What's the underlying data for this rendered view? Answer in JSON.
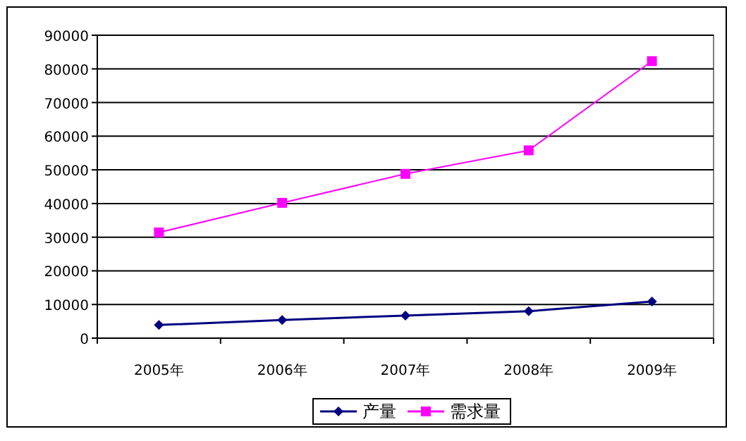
{
  "chart_data": {
    "type": "line",
    "categories": [
      "2005年",
      "2006年",
      "2007年",
      "2008年",
      "2009年"
    ],
    "series": [
      {
        "name": "产量",
        "color": "#000080",
        "marker": "diamond",
        "values": [
          3900,
          5400,
          6700,
          8000,
          10900
        ]
      },
      {
        "name": "需求量",
        "color": "#ff00ff",
        "marker": "square",
        "values": [
          31400,
          40200,
          48800,
          55800,
          82300
        ]
      }
    ],
    "ylim": [
      0,
      90000
    ],
    "yticks": [
      0,
      10000,
      20000,
      30000,
      40000,
      50000,
      60000,
      70000,
      80000,
      90000
    ],
    "grid": "y",
    "legend": "bottom"
  }
}
